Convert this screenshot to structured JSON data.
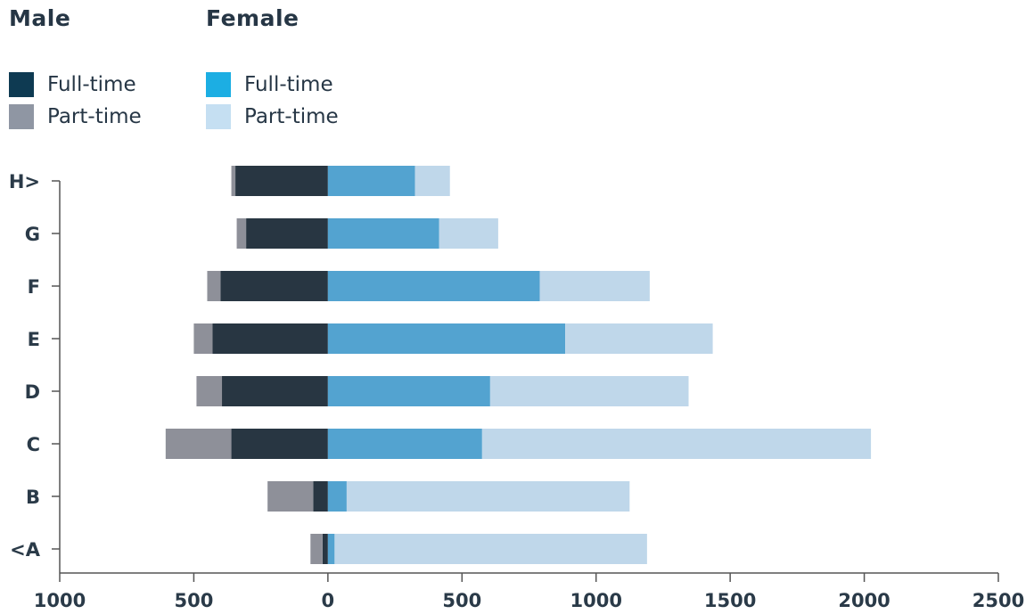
{
  "legend": {
    "male_title": "Male",
    "female_title": "Female",
    "male_fulltime": "Full-time",
    "male_parttime": "Part-time",
    "female_fulltime": "Full-time",
    "female_parttime": "Part-time"
  },
  "colors": {
    "male_fulltime_legend": "#0e3a52",
    "male_parttime_legend": "#8f96a3",
    "female_fulltime_legend": "#1caee3",
    "female_parttime_legend": "#c5dff2",
    "male_fulltime_bar": "#283642",
    "male_parttime_bar": "#8e9099",
    "female_fulltime_bar": "#53a3d0",
    "female_parttime_bar": "#bfd7ea",
    "axis": "#555555"
  },
  "chart_data": {
    "type": "bar",
    "orientation": "horizontal",
    "stacked": true,
    "diverging": true,
    "categories": [
      "<A",
      "B",
      "C",
      "D",
      "E",
      "F",
      "G",
      "H>"
    ],
    "series": [
      {
        "name": "Male Full-time",
        "side": "male",
        "values": [
          20,
          55,
          360,
          395,
          430,
          400,
          305,
          345
        ]
      },
      {
        "name": "Male Part-time",
        "side": "male",
        "values": [
          45,
          170,
          245,
          95,
          70,
          50,
          35,
          15
        ]
      },
      {
        "name": "Female Full-time",
        "side": "female",
        "values": [
          25,
          70,
          575,
          605,
          885,
          790,
          415,
          325
        ]
      },
      {
        "name": "Female Part-time",
        "side": "female",
        "values": [
          1165,
          1055,
          1450,
          740,
          550,
          410,
          220,
          130
        ]
      }
    ],
    "xaxis_ticks": [
      "1000",
      "500",
      "0",
      "500",
      "1000",
      "1500",
      "2000",
      "2500"
    ],
    "xlim": [
      -1000,
      2500
    ],
    "grid": false,
    "legend_position": "top-left"
  }
}
